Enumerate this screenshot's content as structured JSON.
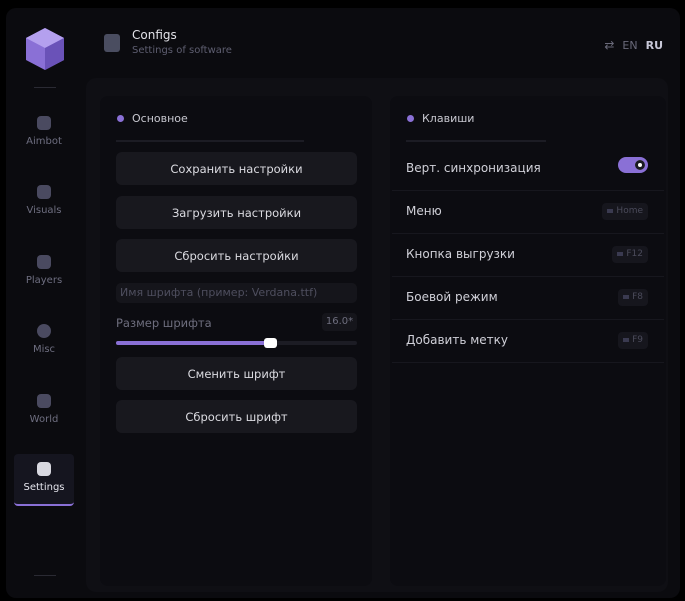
{
  "header": {
    "title": "Configs",
    "subtitle": "Settings of software",
    "lang_en": "EN",
    "lang_ru": "RU"
  },
  "sidebar": {
    "items": [
      {
        "label": "Aimbot",
        "icon": "skull-icon"
      },
      {
        "label": "Visuals",
        "icon": "vr-glasses-icon"
      },
      {
        "label": "Players",
        "icon": "users-icon"
      },
      {
        "label": "Misc",
        "icon": "chat-icon"
      },
      {
        "label": "World",
        "icon": "briefcase-icon"
      },
      {
        "label": "Settings",
        "icon": "list-icon",
        "active": true
      }
    ]
  },
  "main": {
    "title": "Основное",
    "save": "Сохранить настройки",
    "load": "Загрузить настройки",
    "reset": "Сбросить настройки",
    "font_placeholder": "Имя шрифта (пример: Verdana.ttf)",
    "font_size_label": "Размер шрифта",
    "font_size_value": "16.0*",
    "font_size_fraction": 0.64,
    "change_font": "Сменить шрифт",
    "reset_font": "Сбросить шрифт"
  },
  "keys": {
    "title": "Клавиши",
    "rows": [
      {
        "label": "Верт. синхронизация",
        "toggle": true
      },
      {
        "label": "Меню",
        "key": "Home"
      },
      {
        "label": "Кнопка выгрузки",
        "key": "F12"
      },
      {
        "label": "Боевой режим",
        "key": "F8"
      },
      {
        "label": "Добавить метку",
        "key": "F9"
      }
    ]
  },
  "colors": {
    "accent": "#8a70d6",
    "background": "#0b0b0f"
  }
}
